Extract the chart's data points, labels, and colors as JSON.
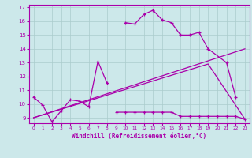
{
  "xlabel": "Windchill (Refroidissement éolien,°C)",
  "line1_x": [
    0,
    1,
    2,
    3,
    4,
    5,
    6,
    7,
    8,
    10,
    11,
    12,
    13,
    14,
    15,
    16,
    17,
    18,
    19,
    21,
    22
  ],
  "line1_y": [
    10.5,
    9.9,
    8.7,
    9.5,
    10.3,
    10.2,
    9.8,
    13.1,
    11.5,
    15.9,
    15.8,
    16.5,
    16.8,
    16.1,
    15.9,
    15.0,
    15.0,
    15.2,
    14.0,
    13.0,
    10.5
  ],
  "line1_break_after": 8,
  "line2_x": [
    9,
    10,
    11,
    12,
    13,
    14,
    15,
    16,
    17,
    18,
    19,
    20,
    21,
    22,
    23
  ],
  "line2_y": [
    9.4,
    9.4,
    9.4,
    9.4,
    9.4,
    9.4,
    9.4,
    9.1,
    9.1,
    9.1,
    9.1,
    9.1,
    9.1,
    9.1,
    8.9
  ],
  "line3_x": [
    0,
    23
  ],
  "line3_y": [
    9.0,
    14.0
  ],
  "line4_x": [
    0,
    19,
    23
  ],
  "line4_y": [
    9.0,
    12.9,
    8.9
  ],
  "bg_color": "#cce8ea",
  "grid_color": "#aacccc",
  "line_color": "#aa00aa",
  "ylim": [
    8.6,
    17.2
  ],
  "xlim": [
    -0.5,
    23.5
  ],
  "yticks": [
    9,
    10,
    11,
    12,
    13,
    14,
    15,
    16,
    17
  ],
  "xticks": [
    0,
    1,
    2,
    3,
    4,
    5,
    6,
    7,
    8,
    9,
    10,
    11,
    12,
    13,
    14,
    15,
    16,
    17,
    18,
    19,
    20,
    21,
    22,
    23
  ]
}
